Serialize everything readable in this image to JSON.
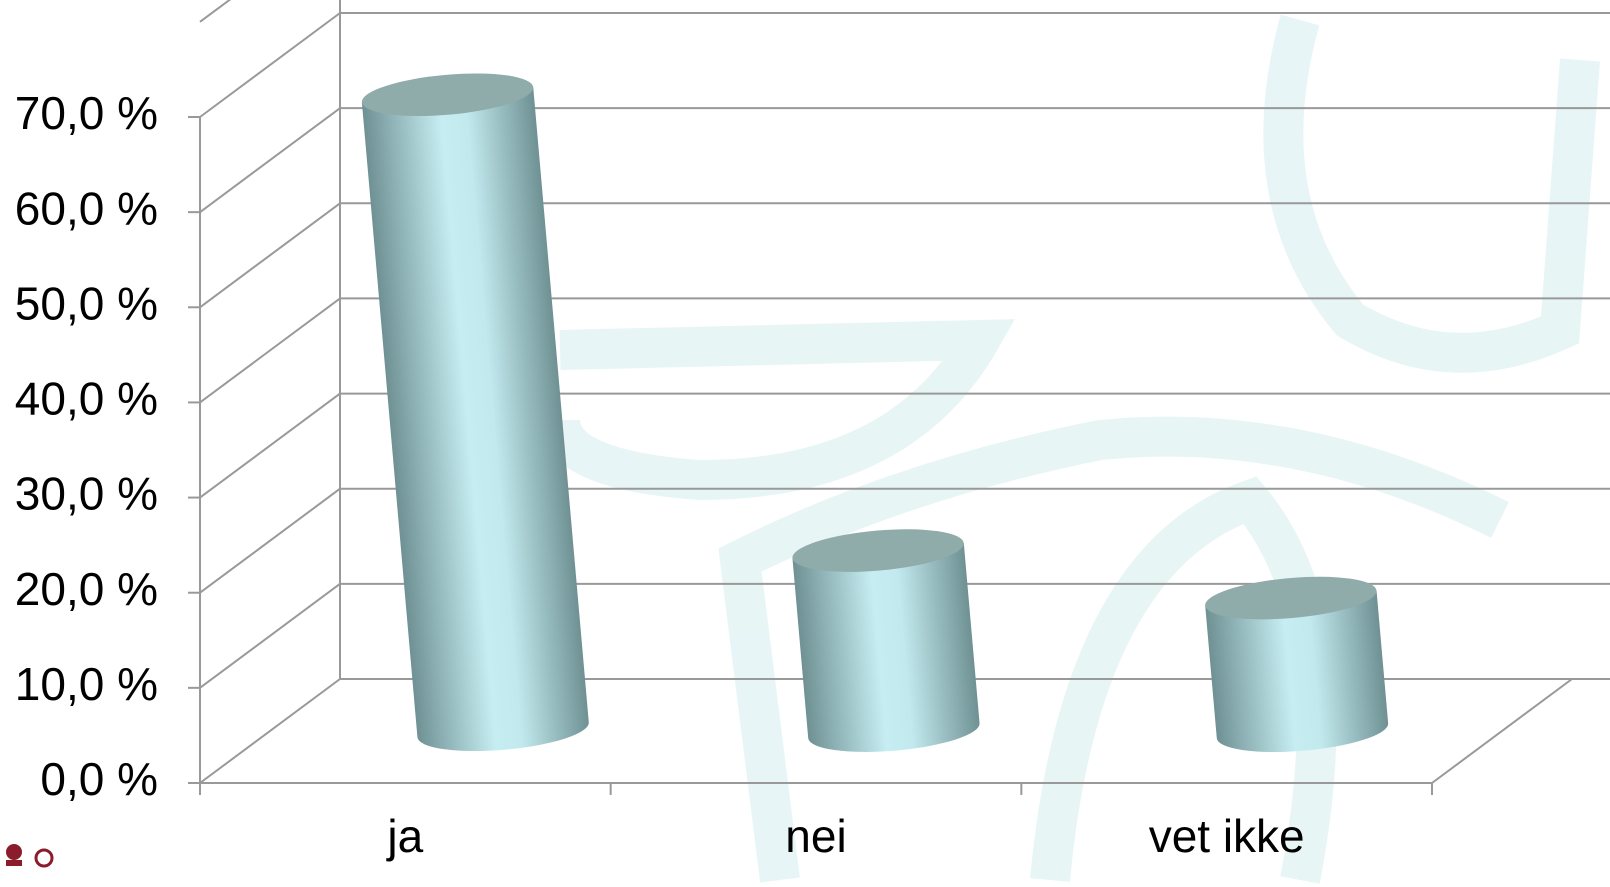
{
  "chart_data": {
    "type": "bar3d-cylinder",
    "categories": [
      "ja",
      "nei",
      "vet ikke"
    ],
    "values": [
      67,
      19,
      14
    ],
    "color": "#c6eef2",
    "ylim": [
      0,
      80
    ],
    "yticks": [
      {
        "value": 0,
        "label": "0,0 %"
      },
      {
        "value": 10,
        "label": "10,0 %"
      },
      {
        "value": 20,
        "label": "20,0 %"
      },
      {
        "value": 30,
        "label": "30,0 %"
      },
      {
        "value": 40,
        "label": "40,0 %"
      },
      {
        "value": 50,
        "label": "50,0 %"
      },
      {
        "value": 60,
        "label": "60,0 %"
      },
      {
        "value": 70,
        "label": "70,0 %"
      }
    ],
    "grid": true
  }
}
